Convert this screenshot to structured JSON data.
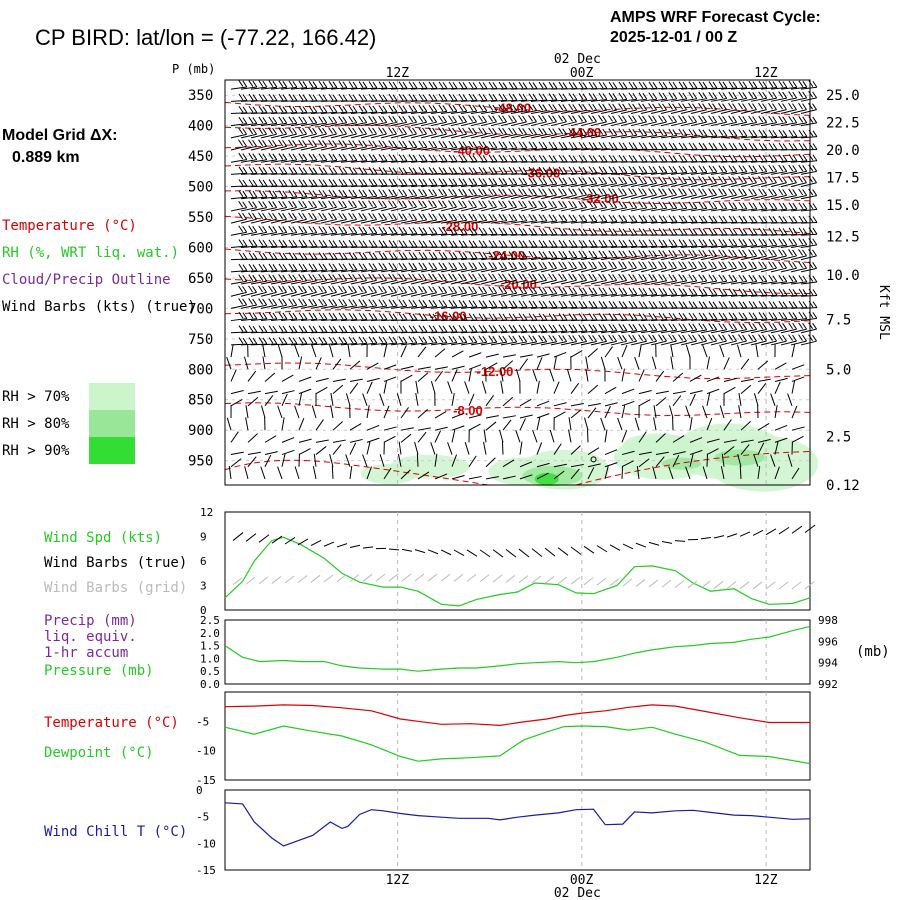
{
  "header": {
    "title": "CP BIRD:  lat/lon = (-77.22, 166.42)",
    "cycle_line1": "AMPS WRF Forecast Cycle:",
    "cycle_line2": "2025-12-01 / 00  Z"
  },
  "left_labels": {
    "model_grid": "Model Grid ΔX:",
    "grid_value": "0.889 km",
    "temperature": "Temperature (°C)",
    "rh": "RH (%, WRT liq. wat.)",
    "cloud": "Cloud/Precip Outline",
    "wind_barbs": "Wind Barbs (kts) (true)",
    "rh_legend": [
      {
        "label": "RH > 70%",
        "color": "#ccf5cc"
      },
      {
        "label": "RH > 80%",
        "color": "#99e699"
      },
      {
        "label": "RH > 90%",
        "color": "#33dd33"
      }
    ]
  },
  "time_axis": {
    "labels": [
      "12Z",
      "00Z",
      "12Z"
    ],
    "label_fracs": [
      0.295,
      0.61,
      0.925
    ],
    "date_label": "02 Dec"
  },
  "colors": {
    "temperature": "#dd0000",
    "rh_green": "#22cc22",
    "wind_speed": "#22cc22",
    "precip_label": "#7a2a9a",
    "wind_chill": "#1a1aaa",
    "barbs_grid": "#bbbbbb"
  },
  "chart_data": [
    {
      "type": "heatmap",
      "name": "cross-section",
      "y_title": "P (mb)",
      "pressure_ticks": [
        350,
        400,
        450,
        500,
        550,
        600,
        650,
        700,
        750,
        800,
        850,
        900,
        950
      ],
      "ylim_mb": [
        325,
        990
      ],
      "height_ticks": [
        "25.0",
        "22.5",
        "20.0",
        "17.5",
        "15.0",
        "12.5",
        "10.0",
        "7.5",
        "5.0",
        "2.5",
        "0.12"
      ],
      "height_tick_pressures": [
        350,
        395,
        440,
        485,
        530,
        582,
        645,
        718,
        800,
        910,
        990
      ],
      "height_axis_label": "Kft MSL",
      "isotherms": [
        {
          "label": "-48.00",
          "at_x": 0.46,
          "pressure": 370
        },
        {
          "label": "-44.00",
          "at_x": 0.58,
          "pressure": 410
        },
        {
          "label": "-40.00",
          "at_x": 0.39,
          "pressure": 440
        },
        {
          "label": "-36.00",
          "at_x": 0.51,
          "pressure": 477
        },
        {
          "label": "-32.00",
          "at_x": 0.61,
          "pressure": 519
        },
        {
          "label": "-28.00",
          "at_x": 0.37,
          "pressure": 565
        },
        {
          "label": "-24.00",
          "at_x": 0.45,
          "pressure": 612
        },
        {
          "label": "-20.00",
          "at_x": 0.47,
          "pressure": 660
        },
        {
          "label": "-16.00",
          "at_x": 0.35,
          "pressure": 712
        },
        {
          "label": "-12.00",
          "at_x": 0.43,
          "pressure": 803
        },
        {
          "label": "-8.00",
          "at_x": 0.39,
          "pressure": 867
        }
      ]
    },
    {
      "type": "line",
      "name": "wind-speed",
      "title": "Wind Spd (kts)",
      "ylim": [
        0,
        12
      ],
      "yticks": [
        0,
        3,
        6,
        9,
        12
      ],
      "x": [
        0,
        0.03,
        0.05,
        0.08,
        0.1,
        0.13,
        0.17,
        0.2,
        0.23,
        0.27,
        0.3,
        0.33,
        0.37,
        0.4,
        0.43,
        0.47,
        0.5,
        0.53,
        0.57,
        0.6,
        0.63,
        0.67,
        0.7,
        0.73,
        0.77,
        0.8,
        0.83,
        0.87,
        0.9,
        0.93,
        0.97,
        1.0
      ],
      "values": [
        1.5,
        3.5,
        6.0,
        8.5,
        8.9,
        8.0,
        6.3,
        4.5,
        3.4,
        2.8,
        2.8,
        2.3,
        0.7,
        0.5,
        1.3,
        1.9,
        2.2,
        3.3,
        3.1,
        2.1,
        2.0,
        3.0,
        5.3,
        5.4,
        4.8,
        3.3,
        2.3,
        2.6,
        1.4,
        0.7,
        0.8,
        1.5
      ]
    },
    {
      "type": "line",
      "name": "precip-pressure",
      "titles": [
        "Precip (mm)",
        "liq. equiv.",
        "1-hr accum",
        "Pressure (mb)"
      ],
      "ylim_left": [
        0.0,
        2.5
      ],
      "yticks_left": [
        "0.0",
        "0.5",
        "1.0",
        "1.5",
        "2.0",
        "2.5"
      ],
      "ylim_right": [
        992,
        998
      ],
      "yticks_right": [
        992,
        994,
        996,
        998
      ],
      "right_unit": "(mb)",
      "x": [
        0,
        0.03,
        0.06,
        0.1,
        0.13,
        0.17,
        0.2,
        0.23,
        0.27,
        0.3,
        0.33,
        0.37,
        0.4,
        0.43,
        0.47,
        0.5,
        0.53,
        0.57,
        0.6,
        0.63,
        0.67,
        0.7,
        0.73,
        0.77,
        0.8,
        0.83,
        0.87,
        0.9,
        0.93,
        0.97,
        1.0
      ],
      "pressure": [
        995.6,
        994.5,
        994.1,
        994.2,
        994.1,
        994.1,
        993.7,
        993.5,
        993.4,
        993.4,
        993.2,
        993.4,
        993.5,
        993.5,
        993.7,
        993.9,
        994.0,
        994.1,
        994.0,
        994.1,
        994.5,
        994.9,
        995.2,
        995.5,
        995.6,
        995.8,
        995.9,
        996.2,
        996.4,
        997.0,
        997.4
      ],
      "precip": []
    },
    {
      "type": "line",
      "name": "temp-dewpoint",
      "ylim": [
        -15,
        0
      ],
      "yticks": [
        -15,
        -10,
        -5
      ],
      "series": [
        {
          "name": "Temperature (°C)",
          "values": [
            -2.5,
            -2.4,
            -2.2,
            -2.3,
            -2.7,
            -3.2,
            -4.6,
            -5.0,
            -5.5,
            -5.4,
            -5.7,
            -5.1,
            -4.6,
            -4.0,
            -3.6,
            -3.2,
            -2.6,
            -2.2,
            -2.4,
            -3.3,
            -4.4,
            -5.2,
            -5.2
          ]
        },
        {
          "name": "Dewpoint (°C)",
          "values": [
            -6.0,
            -7.2,
            -5.8,
            -6.7,
            -7.5,
            -9.0,
            -11.0,
            -11.8,
            -11.4,
            -11.2,
            -10.9,
            -8.2,
            -6.8,
            -5.9,
            -5.8,
            -5.9,
            -6.5,
            -6.0,
            -7.2,
            -8.5,
            -10.8,
            -11.0,
            -12.2
          ]
        }
      ],
      "x": [
        0,
        0.05,
        0.1,
        0.15,
        0.2,
        0.25,
        0.3,
        0.33,
        0.37,
        0.42,
        0.47,
        0.51,
        0.55,
        0.58,
        0.61,
        0.65,
        0.69,
        0.73,
        0.77,
        0.82,
        0.88,
        0.93,
        1.0
      ]
    },
    {
      "type": "line",
      "name": "wind-chill",
      "title": "Wind Chill T (°C)",
      "ylim": [
        -15,
        0
      ],
      "yticks": [
        -15,
        -10,
        -5,
        0
      ],
      "x": [
        0,
        0.03,
        0.05,
        0.08,
        0.1,
        0.15,
        0.18,
        0.2,
        0.21,
        0.23,
        0.25,
        0.27,
        0.3,
        0.33,
        0.37,
        0.4,
        0.45,
        0.47,
        0.5,
        0.53,
        0.57,
        0.6,
        0.63,
        0.65,
        0.68,
        0.7,
        0.73,
        0.77,
        0.8,
        0.83,
        0.87,
        0.9,
        0.93,
        0.97,
        1.0
      ],
      "values": [
        -2.4,
        -2.6,
        -6.0,
        -9.0,
        -10.5,
        -8.5,
        -6.0,
        -7.2,
        -6.8,
        -4.6,
        -3.7,
        -3.9,
        -4.4,
        -4.8,
        -5.1,
        -5.3,
        -5.3,
        -5.6,
        -5.1,
        -4.7,
        -4.3,
        -3.7,
        -3.6,
        -6.5,
        -6.4,
        -4.1,
        -4.3,
        -3.9,
        -3.8,
        -4.2,
        -4.7,
        -4.8,
        -5.1,
        -5.5,
        -5.4
      ]
    }
  ],
  "lower_labels": {
    "wind_spd": "Wind Spd (kts)",
    "wind_barbs_true": "Wind Barbs (true)",
    "wind_barbs_grid": "Wind Barbs (grid)",
    "precip": "Precip (mm)",
    "liq": "liq. equiv.",
    "accum": "1-hr accum",
    "pressure": "Pressure (mb)",
    "temperature": "Temperature (°C)",
    "dewpoint": "Dewpoint (°C)",
    "wind_chill": "Wind Chill T (°C)"
  }
}
